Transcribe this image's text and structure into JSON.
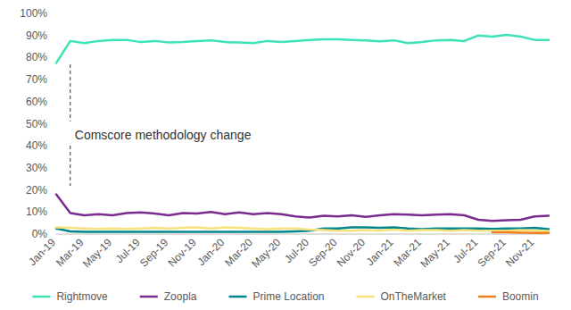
{
  "chart_data": {
    "type": "line",
    "categories": [
      "Jan-19",
      null,
      "Mar-19",
      null,
      "May-19",
      null,
      "Jul-19",
      null,
      "Sep-19",
      null,
      "Nov-19",
      null,
      "Jan-20",
      null,
      "Mar-20",
      null,
      "May-20",
      null,
      "Jul-20",
      null,
      "Sep-20",
      null,
      "Nov-20",
      null,
      "Jan-21",
      null,
      "Mar-21",
      null,
      "May-21",
      null,
      "Jul-21",
      null,
      "Sep-21",
      null,
      "Nov-21",
      null
    ],
    "series": [
      {
        "name": "Rightmove",
        "color": "#3be3b6",
        "values": [
          77.5,
          87.5,
          86.5,
          87.5,
          88,
          88,
          87,
          87.5,
          86.8,
          87,
          87.5,
          87.8,
          87,
          86.8,
          86.5,
          87.5,
          87,
          87.5,
          88,
          88.3,
          88.3,
          88,
          87.8,
          87.3,
          87.8,
          86.5,
          87,
          87.8,
          88,
          87.5,
          90,
          89.5,
          90.3,
          89.5,
          88,
          88
        ]
      },
      {
        "name": "Zoopla",
        "color": "#7a2b8f",
        "values": [
          18,
          9.5,
          8.5,
          9,
          8.5,
          9.5,
          9.8,
          9.3,
          8.5,
          9.5,
          9.3,
          10,
          9,
          9.8,
          9,
          9.5,
          9,
          8,
          7.5,
          8.3,
          8,
          8.5,
          7.8,
          8.5,
          9,
          8.8,
          8.5,
          8.8,
          9,
          8.5,
          6.5,
          6,
          6.3,
          6.5,
          8,
          8.3
        ]
      },
      {
        "name": "Prime Location",
        "color": "#00868c",
        "values": [
          2.5,
          1.2,
          1,
          1,
          1,
          1,
          1,
          1,
          1,
          1,
          1,
          1,
          1,
          1,
          1,
          1,
          1,
          1.2,
          1.5,
          2.5,
          2.5,
          3,
          3,
          2.8,
          3,
          2.5,
          2.2,
          2.5,
          2.5,
          2.5,
          2.5,
          2.3,
          2.5,
          2.5,
          2.8,
          2.2
        ]
      },
      {
        "name": "OnTheMarket",
        "color": "#f7e27e",
        "values": [
          3,
          2.8,
          2.5,
          2.3,
          2.5,
          2.3,
          2.5,
          2.8,
          2.5,
          2.8,
          3,
          2.5,
          3,
          2.8,
          2.5,
          2.2,
          2.5,
          2.5,
          2,
          1.8,
          1.5,
          1.5,
          1.8,
          1.5,
          2,
          1.5,
          1.8,
          1.8,
          1.5,
          1.8,
          1.5,
          1.5,
          1.5,
          1.8,
          1.5,
          1.3
        ]
      },
      {
        "name": "Boomin",
        "color": "#f07f1f",
        "values": [
          null,
          null,
          null,
          null,
          null,
          null,
          null,
          null,
          null,
          null,
          null,
          null,
          null,
          null,
          null,
          null,
          null,
          null,
          null,
          null,
          null,
          null,
          null,
          null,
          null,
          null,
          null,
          null,
          null,
          null,
          null,
          0.8,
          0.8,
          0.6,
          0.5,
          0.5
        ]
      }
    ],
    "ylim": [
      0,
      100
    ],
    "yticks": [
      {
        "value": 0,
        "label": "0%"
      },
      {
        "value": 10,
        "label": "10%"
      },
      {
        "value": 20,
        "label": "20%"
      },
      {
        "value": 30,
        "label": "30%"
      },
      {
        "value": 40,
        "label": "40%"
      },
      {
        "value": 50,
        "label": "50%"
      },
      {
        "value": 60,
        "label": "60%"
      },
      {
        "value": 70,
        "label": "70%"
      },
      {
        "value": 80,
        "label": "80%"
      },
      {
        "value": 90,
        "label": "90%"
      },
      {
        "value": 100,
        "label": "100%"
      }
    ],
    "grid": false,
    "legend": "bottom",
    "annotations": [
      {
        "text": "Comscore methodology change",
        "x": 1
      }
    ]
  }
}
